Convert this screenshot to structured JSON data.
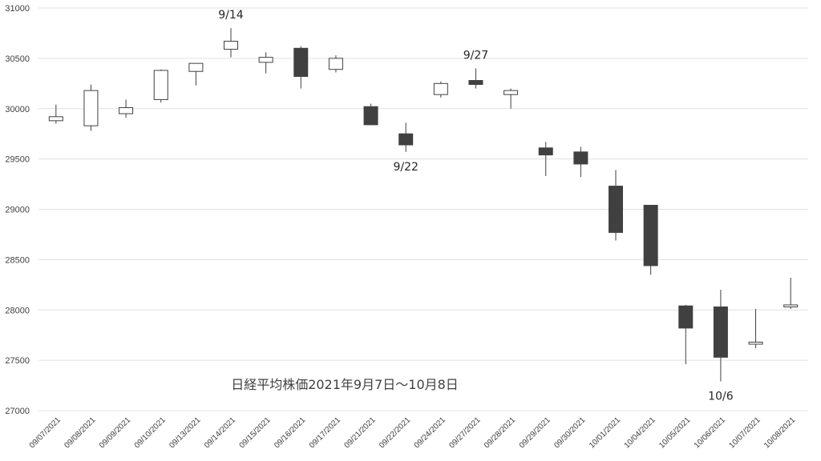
{
  "chart_data": {
    "type": "candlestick",
    "title": "日経平均株価2021年9月7日～10月8日",
    "ylim": [
      27000,
      31000
    ],
    "yticks": [
      27000,
      27500,
      28000,
      28500,
      29000,
      29500,
      30000,
      30500,
      31000
    ],
    "grid": true,
    "colors": {
      "up_fill": "#ffffff",
      "down_fill": "#404040",
      "line": "#404040",
      "grid": "#e0e0e0"
    },
    "candles": [
      {
        "date": "09/07/2021",
        "open": 29880,
        "high": 30040,
        "low": 29850,
        "close": 29920
      },
      {
        "date": "09/08/2021",
        "open": 29830,
        "high": 30240,
        "low": 29780,
        "close": 30180
      },
      {
        "date": "09/09/2021",
        "open": 29950,
        "high": 30090,
        "low": 29910,
        "close": 30010
      },
      {
        "date": "09/10/2021",
        "open": 30090,
        "high": 30390,
        "low": 30060,
        "close": 30380
      },
      {
        "date": "09/13/2021",
        "open": 30370,
        "high": 30450,
        "low": 30230,
        "close": 30450
      },
      {
        "date": "09/14/2021",
        "open": 30590,
        "high": 30800,
        "low": 30510,
        "close": 30670
      },
      {
        "date": "09/15/2021",
        "open": 30460,
        "high": 30560,
        "low": 30350,
        "close": 30510
      },
      {
        "date": "09/16/2021",
        "open": 30600,
        "high": 30620,
        "low": 30200,
        "close": 30320
      },
      {
        "date": "09/17/2021",
        "open": 30390,
        "high": 30530,
        "low": 30360,
        "close": 30500
      },
      {
        "date": "09/21/2021",
        "open": 30020,
        "high": 30050,
        "low": 29840,
        "close": 29840
      },
      {
        "date": "09/22/2021",
        "open": 29750,
        "high": 29860,
        "low": 29570,
        "close": 29640
      },
      {
        "date": "09/24/2021",
        "open": 30140,
        "high": 30270,
        "low": 30110,
        "close": 30250
      },
      {
        "date": "09/27/2021",
        "open": 30280,
        "high": 30400,
        "low": 30200,
        "close": 30240
      },
      {
        "date": "09/28/2021",
        "open": 30140,
        "high": 30200,
        "low": 30000,
        "close": 30180
      },
      {
        "date": "09/29/2021",
        "open": 29610,
        "high": 29670,
        "low": 29330,
        "close": 29540
      },
      {
        "date": "09/30/2021",
        "open": 29570,
        "high": 29620,
        "low": 29320,
        "close": 29450
      },
      {
        "date": "10/01/2021",
        "open": 29230,
        "high": 29390,
        "low": 28690,
        "close": 28770
      },
      {
        "date": "10/04/2021",
        "open": 29040,
        "high": 29040,
        "low": 28350,
        "close": 28440
      },
      {
        "date": "10/05/2021",
        "open": 28040,
        "high": 28050,
        "low": 27460,
        "close": 27820
      },
      {
        "date": "10/06/2021",
        "open": 28030,
        "high": 28200,
        "low": 27290,
        "close": 27530
      },
      {
        "date": "10/07/2021",
        "open": 27660,
        "high": 28010,
        "low": 27620,
        "close": 27680
      },
      {
        "date": "10/08/2021",
        "open": 28030,
        "high": 28320,
        "low": 28010,
        "close": 28050
      }
    ],
    "annotations": [
      {
        "text": "9/14",
        "date": "09/14/2021",
        "anchor": "above-high"
      },
      {
        "text": "9/22",
        "date": "09/22/2021",
        "anchor": "below-low"
      },
      {
        "text": "9/27",
        "date": "09/27/2021",
        "anchor": "above-high"
      },
      {
        "text": "10/6",
        "date": "10/06/2021",
        "anchor": "below-low"
      }
    ]
  }
}
